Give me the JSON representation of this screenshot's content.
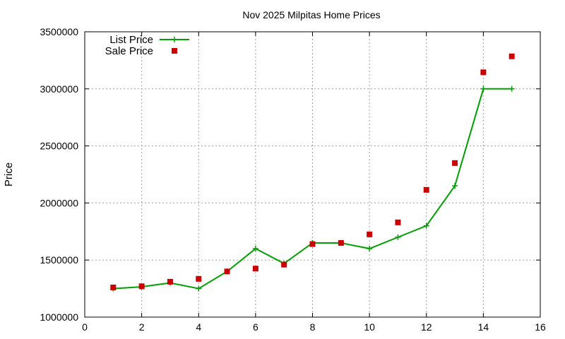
{
  "chart_data": {
    "type": "line",
    "title": "Nov 2025 Milpitas Home Prices",
    "xlabel": "",
    "ylabel": "Price",
    "xlim": [
      0,
      16
    ],
    "ylim": [
      1000000,
      3500000
    ],
    "xticks": [
      0,
      2,
      4,
      6,
      8,
      10,
      12,
      14,
      16
    ],
    "yticks": [
      1000000,
      1500000,
      2000000,
      2500000,
      3000000,
      3500000
    ],
    "xtick_labels": [
      "0",
      "2",
      "4",
      "6",
      "8",
      "10",
      "12",
      "14",
      "16"
    ],
    "ytick_labels": [
      "1000000",
      "1500000",
      "2000000",
      "2500000",
      "3000000",
      "3500000"
    ],
    "grid": true,
    "legend_position": "top-left",
    "series": [
      {
        "name": "List Price",
        "style": "line-plus",
        "color": "#00a000",
        "x": [
          1,
          2,
          3,
          4,
          5,
          6,
          7,
          8,
          9,
          10,
          11,
          12,
          13,
          14,
          15
        ],
        "values": [
          1250000,
          1265000,
          1300000,
          1250000,
          1400000,
          1600000,
          1470000,
          1650000,
          1650000,
          1600000,
          1700000,
          1800000,
          2150000,
          3000000,
          3000000
        ]
      },
      {
        "name": "Sale Price",
        "style": "square",
        "color": "#cc0000",
        "x": [
          1,
          2,
          3,
          4,
          5,
          6,
          7,
          8,
          9,
          10,
          11,
          12,
          13,
          14,
          15
        ],
        "values": [
          1260000,
          1270000,
          1310000,
          1335000,
          1400000,
          1425000,
          1460000,
          1640000,
          1650000,
          1725000,
          1830000,
          2115000,
          2350000,
          3145000,
          3285000
        ]
      }
    ]
  }
}
